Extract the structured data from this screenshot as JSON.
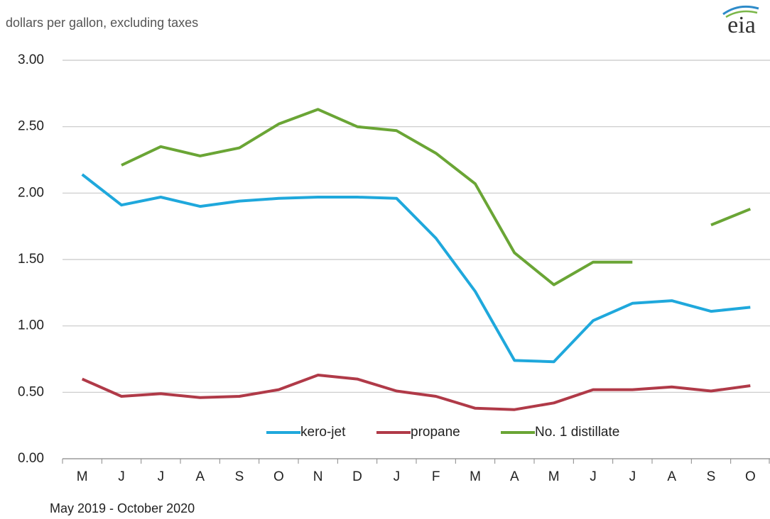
{
  "logo": "eia",
  "chart_data": {
    "type": "line",
    "y_label": "dollars per gallon, excluding taxes",
    "x_label": "May 2019  -  October 2020",
    "categories": [
      "M",
      "J",
      "J",
      "A",
      "S",
      "O",
      "N",
      "D",
      "J",
      "F",
      "M",
      "A",
      "M",
      "J",
      "J",
      "A",
      "S",
      "O"
    ],
    "series": [
      {
        "name": "kero-jet",
        "color": "#1fa8dc",
        "values": [
          2.14,
          1.91,
          1.97,
          1.9,
          1.94,
          1.96,
          1.97,
          1.97,
          1.96,
          1.66,
          1.26,
          0.74,
          0.73,
          1.04,
          1.17,
          1.19,
          1.11,
          1.14
        ]
      },
      {
        "name": "propane",
        "color": "#b03a48",
        "values": [
          0.6,
          0.47,
          0.49,
          0.46,
          0.47,
          0.52,
          0.63,
          0.6,
          0.51,
          0.47,
          0.38,
          0.37,
          0.42,
          0.52,
          0.52,
          0.54,
          0.51,
          0.55
        ]
      },
      {
        "name": "No. 1 distillate",
        "color": "#6aa535",
        "values": [
          null,
          2.21,
          2.35,
          2.28,
          2.34,
          2.52,
          2.63,
          2.5,
          2.47,
          2.3,
          2.07,
          1.55,
          1.31,
          1.48,
          1.48,
          null,
          1.76,
          1.88
        ]
      }
    ],
    "ylim": [
      0,
      3
    ],
    "yticks": [
      {
        "value": 0,
        "label": "0.00"
      },
      {
        "value": 0.5,
        "label": "0.50"
      },
      {
        "value": 1,
        "label": "1.00"
      },
      {
        "value": 1.5,
        "label": "1.50"
      },
      {
        "value": 2,
        "label": "2.00"
      },
      {
        "value": 2.5,
        "label": "2.50"
      },
      {
        "value": 3,
        "label": "3.00"
      }
    ],
    "grid": true,
    "legend": "bottom"
  }
}
